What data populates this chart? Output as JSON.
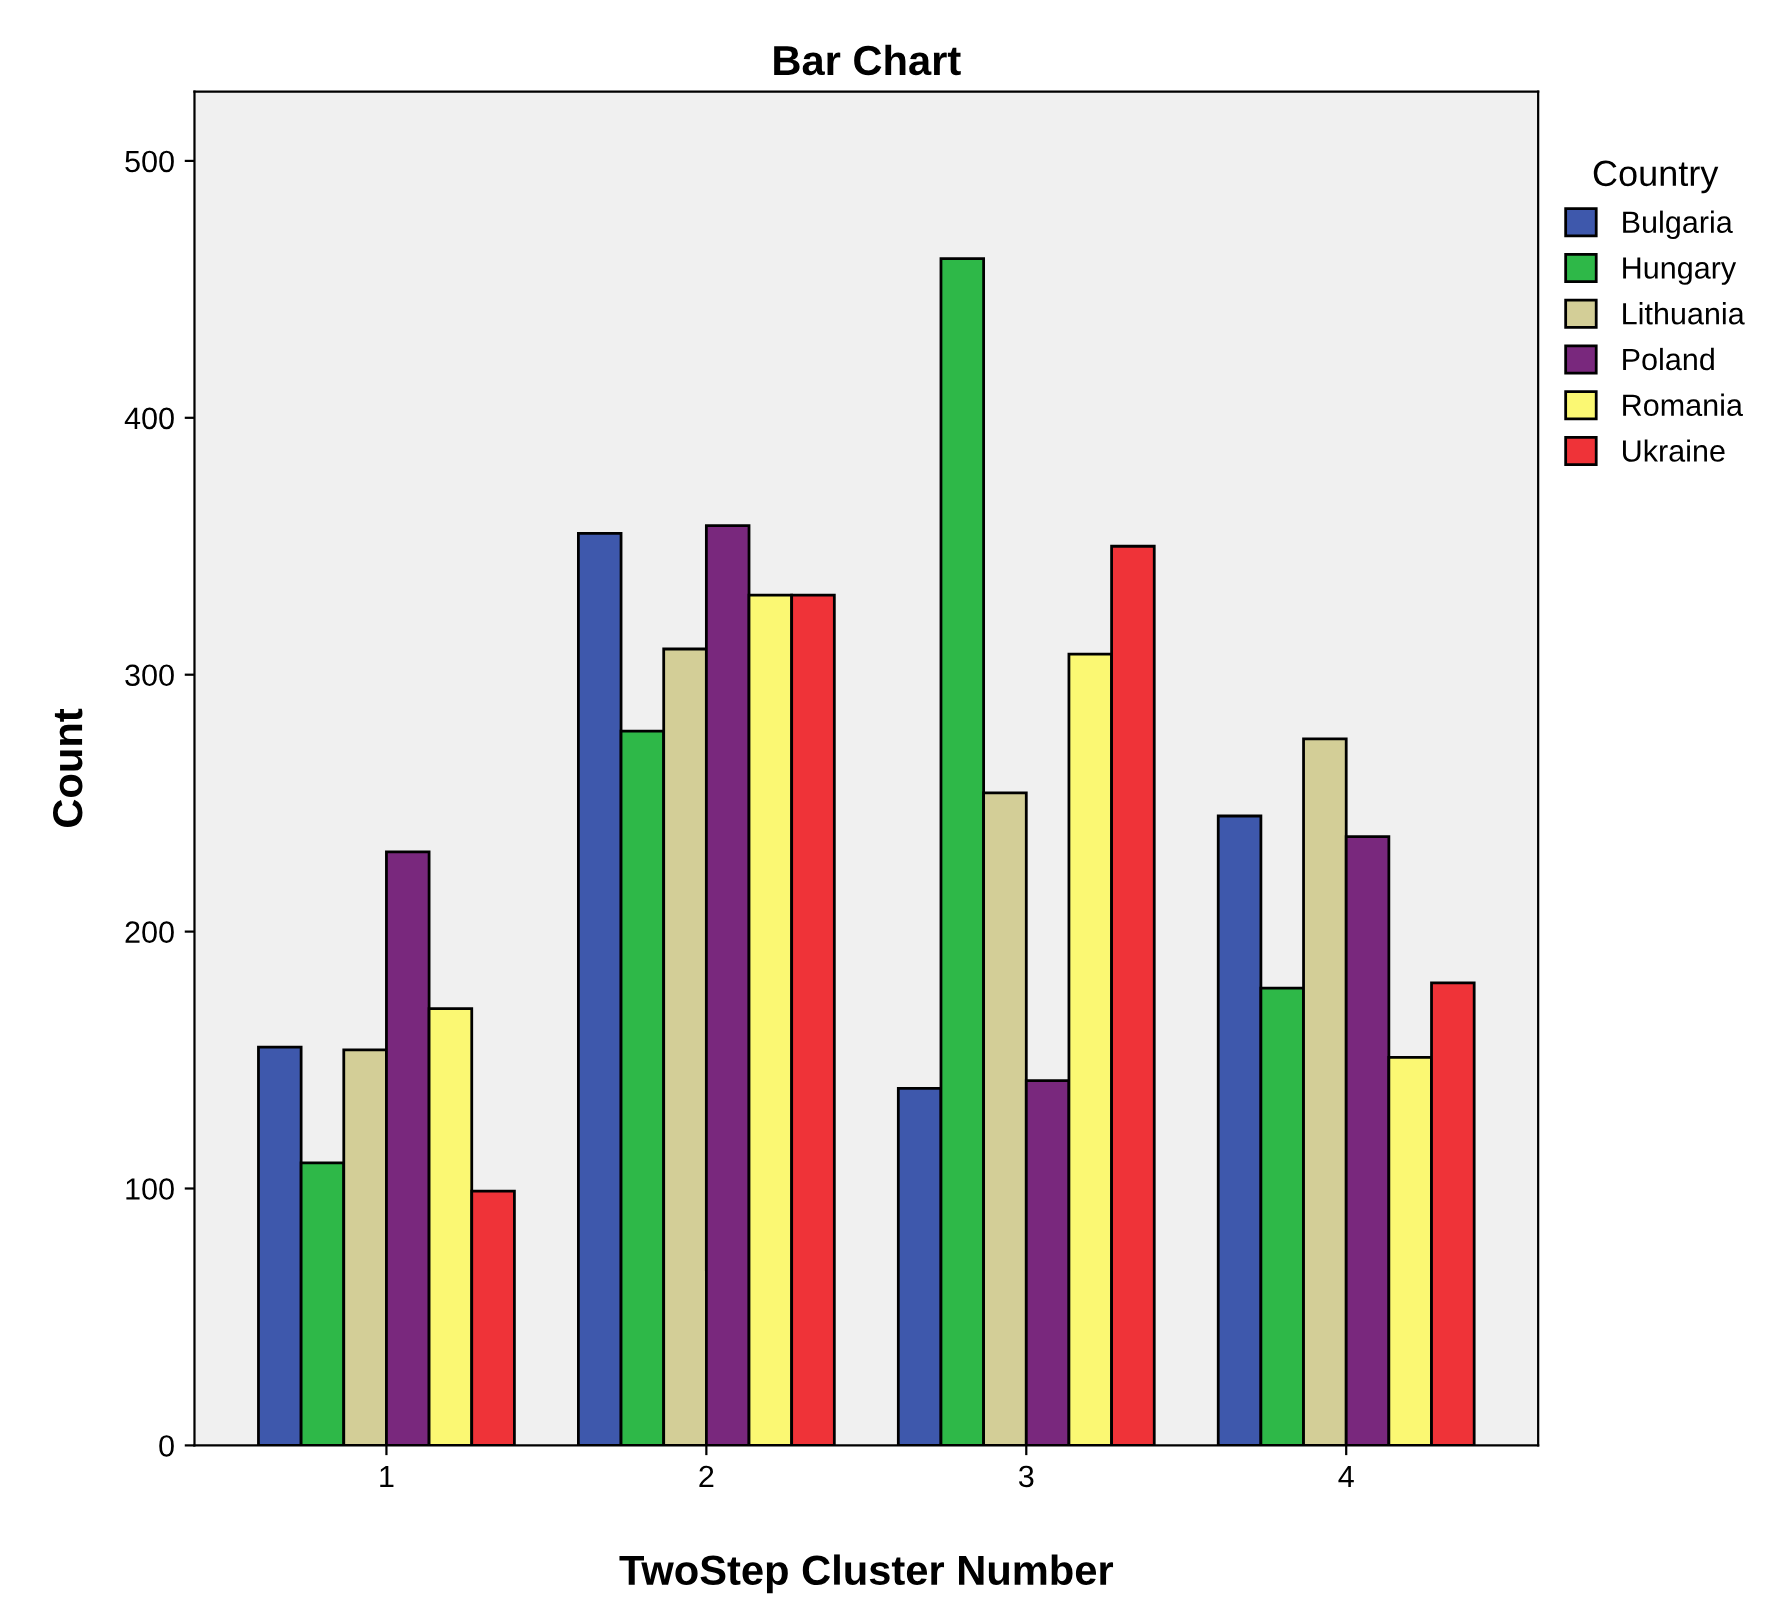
{
  "chart_data": {
    "type": "bar",
    "title": "Bar Chart",
    "xlabel": "TwoStep Cluster Number",
    "ylabel": "Count",
    "legend_title": "Country",
    "categories": [
      "1",
      "2",
      "3",
      "4"
    ],
    "series": [
      {
        "name": "Bulgaria",
        "color": "#3e58ac",
        "values": [
          155,
          355,
          139,
          245
        ]
      },
      {
        "name": "Hungary",
        "color": "#2eb848",
        "values": [
          110,
          278,
          462,
          178
        ]
      },
      {
        "name": "Lithuania",
        "color": "#d3ce97",
        "values": [
          154,
          310,
          254,
          275
        ]
      },
      {
        "name": "Poland",
        "color": "#79287d",
        "values": [
          231,
          358,
          142,
          237
        ]
      },
      {
        "name": "Romania",
        "color": "#fbf873",
        "values": [
          170,
          331,
          308,
          151
        ]
      },
      {
        "name": "Ukraine",
        "color": "#ef3338",
        "values": [
          99,
          331,
          350,
          180
        ]
      }
    ],
    "ylim": [
      0,
      527
    ],
    "yticks": [
      0,
      100,
      200,
      300,
      400,
      500
    ],
    "grid": false,
    "legend": "top right"
  }
}
